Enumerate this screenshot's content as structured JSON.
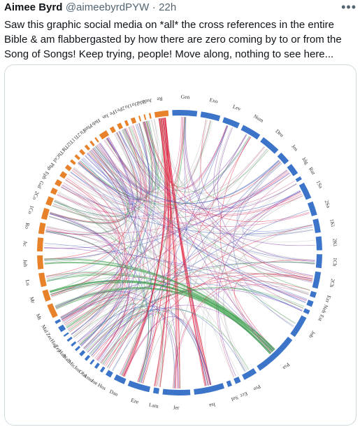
{
  "tweet": {
    "author_name": "Aimee Byrd",
    "handle": "@aimeebyrdPYW",
    "separator": "·",
    "time": "22h",
    "more_icon": "more-horizontal-icon",
    "text": "Saw this graphic social media on *all* the cross references in the entire Bible & am flabbergasted by how there are zero coming by to or from the Song of Songs! Keep trying, people! Move along, nothing to see here..."
  },
  "media": {
    "ot_color": "#3b74c9",
    "nt_color": "#e8822a",
    "books": [
      {
        "label": "Gen"
      },
      {
        "label": "Exo"
      },
      {
        "label": "Lev"
      },
      {
        "label": "Num"
      },
      {
        "label": "Deu"
      },
      {
        "label": "Jos"
      },
      {
        "label": "Jdg"
      },
      {
        "label": "Rut"
      },
      {
        "label": "1Sa"
      },
      {
        "label": "2Sa"
      },
      {
        "label": "1Ki"
      },
      {
        "label": "2Ki"
      },
      {
        "label": "1Ch"
      },
      {
        "label": "2Ch"
      },
      {
        "label": "Ezr"
      },
      {
        "label": "Neh"
      },
      {
        "label": "Est"
      },
      {
        "label": "Job"
      },
      {
        "label": "Psa"
      },
      {
        "label": "Pro"
      },
      {
        "label": "Ecc"
      },
      {
        "label": "Sol"
      },
      {
        "label": "Isa"
      },
      {
        "label": "Jer"
      },
      {
        "label": "Lam"
      },
      {
        "label": "Eze"
      },
      {
        "label": "Dan"
      },
      {
        "label": "Hos"
      },
      {
        "label": "Joe"
      },
      {
        "label": "Amo"
      },
      {
        "label": "Oba"
      },
      {
        "label": "Jon"
      },
      {
        "label": "Mic"
      },
      {
        "label": "Nah"
      },
      {
        "label": "Hab"
      },
      {
        "label": "Zep"
      },
      {
        "label": "Hag"
      },
      {
        "label": "Zec"
      },
      {
        "label": "Mal"
      },
      {
        "label": "Mt"
      },
      {
        "label": "Mr"
      },
      {
        "label": "Lu"
      },
      {
        "label": "Joh"
      },
      {
        "label": "Ac"
      },
      {
        "label": "Ro"
      },
      {
        "label": "1Co"
      },
      {
        "label": "2Co"
      },
      {
        "label": "Gal"
      },
      {
        "label": "Eph"
      },
      {
        "label": "Php"
      },
      {
        "label": "Col"
      },
      {
        "label": "1Th"
      },
      {
        "label": "2Th"
      },
      {
        "label": "1Ti"
      },
      {
        "label": "2Ti"
      },
      {
        "label": "Tit"
      },
      {
        "label": "Phm"
      },
      {
        "label": "Heb"
      },
      {
        "label": "Jas"
      },
      {
        "label": "1Pe"
      },
      {
        "label": "2Pe"
      },
      {
        "label": "1Jo"
      },
      {
        "label": "2Jo"
      },
      {
        "label": "3Jo"
      },
      {
        "label": "Jude"
      },
      {
        "label": "Re"
      }
    ]
  }
}
